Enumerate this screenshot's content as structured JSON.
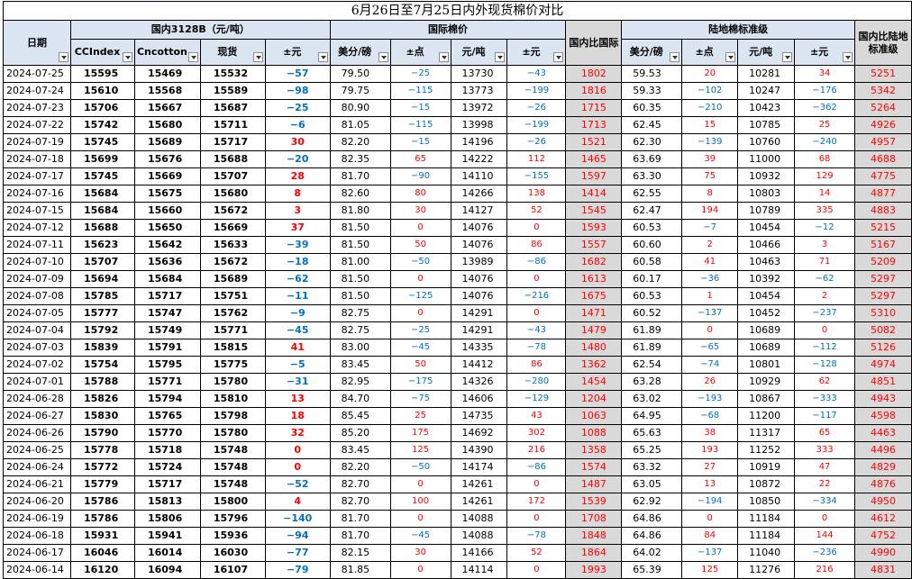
{
  "title": "6月26日至7月25日内外现货棉价对比",
  "groups": {
    "domestic": "国内3128B（元/吨）",
    "intl": "国际棉价",
    "luodi": "陆地棉标准级"
  },
  "headers": {
    "date": "日期",
    "ccindex": "CCIndex",
    "cncotton": "Cncotton",
    "spot": "现货",
    "chg": "±元",
    "intl_usd": "美分/磅",
    "intl_pt": "±点",
    "intl_cny": "元/吨",
    "intl_chg": "±元",
    "intl_diff": "国内比国际",
    "ld_usd": "美分/磅",
    "ld_pt": "±点",
    "ld_cny": "元/吨",
    "ld_chg": "±元",
    "ld_diff": "国内比陆地标准级"
  },
  "rows": [
    [
      "2024-07-25",
      "15595",
      "15469",
      "15532",
      "−57",
      "79.50",
      "−25",
      "13730",
      "−43",
      "1802",
      "59.53",
      "20",
      "10281",
      "34",
      "5251"
    ],
    [
      "2024-07-24",
      "15610",
      "15568",
      "15589",
      "−98",
      "79.75",
      "−115",
      "13773",
      "−199",
      "1816",
      "59.33",
      "−102",
      "10247",
      "−176",
      "5342"
    ],
    [
      "2024-07-23",
      "15706",
      "15667",
      "15687",
      "−25",
      "80.90",
      "−15",
      "13972",
      "−26",
      "1715",
      "60.35",
      "−210",
      "10423",
      "−362",
      "5264"
    ],
    [
      "2024-07-22",
      "15742",
      "15680",
      "15711",
      "−6",
      "81.05",
      "−115",
      "13998",
      "−199",
      "1713",
      "62.45",
      "15",
      "10785",
      "25",
      "4926"
    ],
    [
      "2024-07-19",
      "15745",
      "15689",
      "15717",
      "30",
      "82.20",
      "−15",
      "14196",
      "−26",
      "1521",
      "62.30",
      "−139",
      "10760",
      "−240",
      "4957"
    ],
    [
      "2024-07-18",
      "15699",
      "15676",
      "15688",
      "−20",
      "82.35",
      "65",
      "14222",
      "112",
      "1465",
      "63.69",
      "39",
      "11000",
      "68",
      "4688"
    ],
    [
      "2024-07-17",
      "15745",
      "15669",
      "15707",
      "28",
      "81.70",
      "−90",
      "14110",
      "−155",
      "1597",
      "63.30",
      "75",
      "10932",
      "129",
      "4775"
    ],
    [
      "2024-07-16",
      "15684",
      "15675",
      "15680",
      "8",
      "82.60",
      "80",
      "14266",
      "138",
      "1414",
      "62.55",
      "8",
      "10803",
      "14",
      "4877"
    ],
    [
      "2024-07-15",
      "15684",
      "15660",
      "15672",
      "3",
      "81.80",
      "30",
      "14127",
      "52",
      "1545",
      "62.47",
      "194",
      "10789",
      "335",
      "4883"
    ],
    [
      "2024-07-12",
      "15688",
      "15650",
      "15669",
      "37",
      "81.50",
      "0",
      "14076",
      "0",
      "1593",
      "60.53",
      "−7",
      "10454",
      "−12",
      "5215"
    ],
    [
      "2024-07-11",
      "15623",
      "15642",
      "15633",
      "−39",
      "81.50",
      "50",
      "14076",
      "86",
      "1557",
      "60.60",
      "2",
      "10466",
      "3",
      "5167"
    ],
    [
      "2024-07-10",
      "15707",
      "15636",
      "15672",
      "−18",
      "81.00",
      "−50",
      "13989",
      "−86",
      "1682",
      "60.58",
      "41",
      "10463",
      "71",
      "5209"
    ],
    [
      "2024-07-09",
      "15694",
      "15684",
      "15689",
      "−62",
      "81.50",
      "0",
      "14076",
      "0",
      "1613",
      "60.17",
      "−36",
      "10392",
      "−62",
      "5297"
    ],
    [
      "2024-07-08",
      "15785",
      "15717",
      "15751",
      "−11",
      "81.50",
      "−125",
      "14076",
      "−216",
      "1675",
      "60.53",
      "1",
      "10454",
      "2",
      "5297"
    ],
    [
      "2024-07-05",
      "15777",
      "15747",
      "15762",
      "−9",
      "82.75",
      "0",
      "14291",
      "0",
      "1471",
      "60.52",
      "−137",
      "10452",
      "−237",
      "5310"
    ],
    [
      "2024-07-04",
      "15792",
      "15749",
      "15771",
      "−45",
      "82.75",
      "−25",
      "14291",
      "−43",
      "1479",
      "61.89",
      "0",
      "10689",
      "0",
      "5082"
    ],
    [
      "2024-07-03",
      "15839",
      "15791",
      "15815",
      "41",
      "83.00",
      "−45",
      "14335",
      "−78",
      "1480",
      "61.89",
      "−65",
      "10689",
      "−112",
      "5126"
    ],
    [
      "2024-07-02",
      "15754",
      "15795",
      "15775",
      "−5",
      "83.45",
      "50",
      "14412",
      "86",
      "1362",
      "62.54",
      "−74",
      "10801",
      "−128",
      "4974"
    ],
    [
      "2024-07-01",
      "15788",
      "15771",
      "15780",
      "−31",
      "82.95",
      "−175",
      "14326",
      "−280",
      "1454",
      "63.28",
      "26",
      "10929",
      "62",
      "4851"
    ],
    [
      "2024-06-28",
      "15826",
      "15794",
      "15810",
      "13",
      "84.70",
      "−75",
      "14606",
      "−129",
      "1204",
      "63.02",
      "−193",
      "10867",
      "−333",
      "4943"
    ],
    [
      "2024-06-27",
      "15830",
      "15765",
      "15798",
      "18",
      "85.45",
      "25",
      "14735",
      "43",
      "1063",
      "64.95",
      "−68",
      "11200",
      "−117",
      "4598"
    ],
    [
      "2024-06-26",
      "15790",
      "15770",
      "15780",
      "32",
      "85.20",
      "175",
      "14692",
      "302",
      "1088",
      "65.63",
      "38",
      "11317",
      "65",
      "4463"
    ],
    [
      "2024-06-25",
      "15778",
      "15718",
      "15748",
      "0",
      "83.45",
      "125",
      "14390",
      "216",
      "1358",
      "65.25",
      "193",
      "11252",
      "333",
      "4496"
    ],
    [
      "2024-06-24",
      "15772",
      "15724",
      "15748",
      "0",
      "82.20",
      "−50",
      "14174",
      "−86",
      "1574",
      "63.32",
      "27",
      "10919",
      "47",
      "4829"
    ],
    [
      "2024-06-21",
      "15779",
      "15717",
      "15748",
      "−52",
      "82.70",
      "0",
      "14261",
      "0",
      "1487",
      "63.05",
      "13",
      "10872",
      "22",
      "4876"
    ],
    [
      "2024-06-20",
      "15786",
      "15813",
      "15800",
      "4",
      "82.70",
      "100",
      "14261",
      "172",
      "1539",
      "62.92",
      "−194",
      "10850",
      "−334",
      "4950"
    ],
    [
      "2024-06-19",
      "15786",
      "15806",
      "15796",
      "−140",
      "81.70",
      "0",
      "14088",
      "0",
      "1708",
      "64.86",
      "0",
      "11184",
      "0",
      "4612"
    ],
    [
      "2024-06-18",
      "15931",
      "15941",
      "15936",
      "−94",
      "81.70",
      "−45",
      "14088",
      "−78",
      "1848",
      "64.86",
      "84",
      "11184",
      "144",
      "4752"
    ],
    [
      "2024-06-17",
      "16046",
      "16014",
      "16030",
      "−77",
      "82.15",
      "30",
      "14166",
      "52",
      "1864",
      "64.02",
      "−137",
      "11040",
      "−236",
      "4990"
    ],
    [
      "2024-06-14",
      "16120",
      "16094",
      "16107",
      "−79",
      "81.85",
      "0",
      "14114",
      "0",
      "1993",
      "65.39",
      "125",
      "11276",
      "216",
      "4831"
    ]
  ],
  "colors": {
    "header_bg": "#dbe5f1",
    "diff_bg": "#d9d9d9",
    "up": "#ff0000",
    "down": "#0070c0"
  },
  "icons": [
    "filter-dropdown-icon"
  ]
}
